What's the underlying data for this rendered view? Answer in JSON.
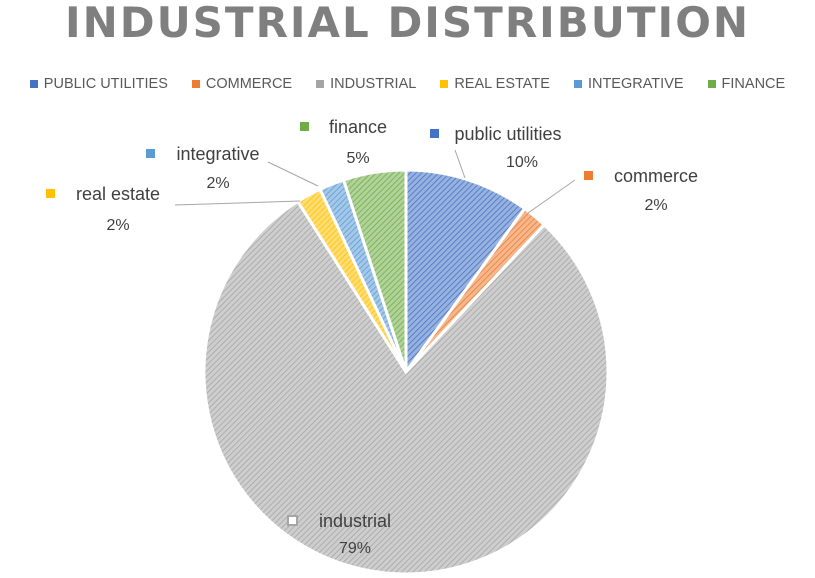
{
  "chart_data": {
    "type": "pie",
    "title": "INDUSTRIAL DISTRIBUTION",
    "legend_position": "top",
    "legend": [
      {
        "label": "PUBLIC UTILITIES",
        "color": "#4472c4"
      },
      {
        "label": "COMMERCE",
        "color": "#ed7d31"
      },
      {
        "label": "INDUSTRIAL",
        "color": "#a5a5a5"
      },
      {
        "label": "REAL ESTATE",
        "color": "#ffc000"
      },
      {
        "label": "INTEGRATIVE",
        "color": "#5b9bd5"
      },
      {
        "label": "FINANCE",
        "color": "#70ad47"
      }
    ],
    "slices": [
      {
        "label": "public utilities",
        "value": 10,
        "pct_label": "10%",
        "color": "#4472c4"
      },
      {
        "label": "commerce",
        "value": 2,
        "pct_label": "2%",
        "color": "#ed7d31"
      },
      {
        "label": "industrial",
        "value": 79,
        "pct_label": "79%",
        "color": "#a5a5a5"
      },
      {
        "label": "real estate",
        "value": 2,
        "pct_label": "2%",
        "color": "#ffc000"
      },
      {
        "label": "integrative",
        "value": 2,
        "pct_label": "2%",
        "color": "#5b9bd5"
      },
      {
        "label": "finance",
        "value": 5,
        "pct_label": "5%",
        "color": "#70ad47"
      }
    ]
  }
}
